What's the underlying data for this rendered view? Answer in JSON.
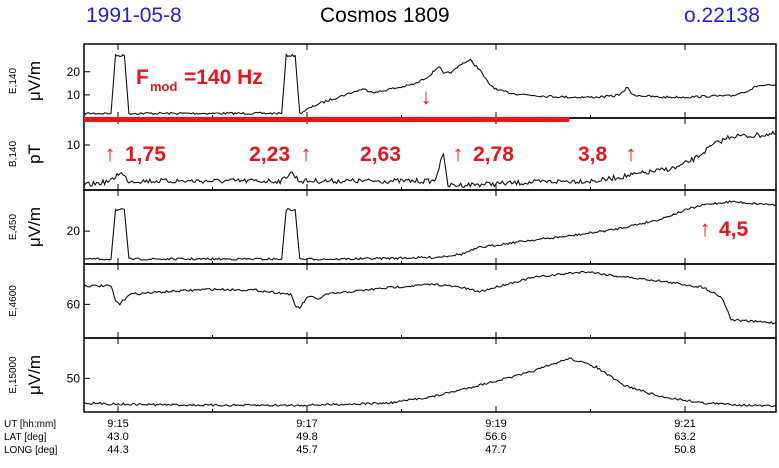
{
  "header": {
    "date": "1991-05-8",
    "satellite": "Cosmos 1809",
    "orbit": "o.22138"
  },
  "colors": {
    "header_blue": "#1f1fe0",
    "annotation_red": "#e8151b",
    "trace": "#111111",
    "frame": "#000000"
  },
  "chart_data": {
    "type": "line",
    "x_unit": "UT [hh:mm]",
    "xlim": [
      "09:14.6",
      "09:22.3"
    ],
    "x_ticks": [
      "9:15",
      "9:17",
      "9:19",
      "9:21"
    ],
    "panels": [
      {
        "id": "E140",
        "ylabel_name": "E,140",
        "ylabel_unit": "μV/m",
        "ylim": [
          0,
          32
        ],
        "y_ticks": [
          10,
          20
        ],
        "grid": false,
        "annotations": {
          "fmod_main": "F",
          "fmod_sub": "mod",
          "fmod_value": "=140 Hz",
          "down_arrow": "↓"
        },
        "series": [
          {
            "points": [
              [
                "09:14.60",
                2
              ],
              [
                "09:14.90",
                2
              ],
              [
                "09:14.95",
                27
              ],
              [
                "09:15.05",
                27
              ],
              [
                "09:15.10",
                2
              ],
              [
                "09:16.80",
                2
              ],
              [
                "09:16.85",
                27
              ],
              [
                "09:16.95",
                27
              ],
              [
                "09:17.00",
                2
              ],
              [
                "09:17.20",
                6
              ],
              [
                "09:17.50",
                10
              ],
              [
                "09:17.70",
                12.5
              ],
              [
                "09:17.85",
                11
              ],
              [
                "09:18.00",
                12.5
              ],
              [
                "09:18.15",
                13.5
              ],
              [
                "09:18.30",
                15
              ],
              [
                "09:18.45",
                18.5
              ],
              [
                "09:18.55",
                22.5
              ],
              [
                "09:18.60",
                19
              ],
              [
                "09:18.70",
                20
              ],
              [
                "09:18.80",
                23.5
              ],
              [
                "09:18.90",
                25
              ],
              [
                "09:19.00",
                21
              ],
              [
                "09:19.10",
                15
              ],
              [
                "09:19.20",
                12
              ],
              [
                "09:19.40",
                10.5
              ],
              [
                "09:19.70",
                9.5
              ],
              [
                "09:20.00",
                9
              ],
              [
                "09:20.30",
                9
              ],
              [
                "09:20.50",
                9.5
              ],
              [
                "09:20.60",
                11
              ],
              [
                "09:20.65",
                13.5
              ],
              [
                "09:20.70",
                10
              ],
              [
                "09:21.00",
                9
              ],
              [
                "09:21.30",
                9
              ],
              [
                "09:21.60",
                9.5
              ],
              [
                "09:21.80",
                9.5
              ],
              [
                "09:22.00",
                12
              ],
              [
                "09:22.10",
                14
              ],
              [
                "09:22.30",
                14
              ]
            ]
          }
        ]
      },
      {
        "id": "B140",
        "ylabel_name": "B,140",
        "ylabel_unit": "pT",
        "ylim": [
          0,
          16
        ],
        "y_ticks": [
          10
        ],
        "grid": false,
        "annotations": {
          "frequency_marks": [
            {
              "time": "09:15.05",
              "label": "1,75"
            },
            {
              "time": "09:17.00",
              "label": "2,23"
            },
            {
              "time": "09:18.55",
              "label": "2,63"
            },
            {
              "time": "09:19.00",
              "label": "2,78"
            },
            {
              "time": "09:20.50",
              "label": "3,8"
            }
          ],
          "up_arrow": "↑"
        },
        "series": [
          {
            "points": [
              [
                "09:14.60",
                1
              ],
              [
                "09:14.90",
                2
              ],
              [
                "09:15.00",
                4
              ],
              [
                "09:15.10",
                2
              ],
              [
                "09:16.80",
                2
              ],
              [
                "09:16.90",
                4
              ],
              [
                "09:17.00",
                2
              ],
              [
                "09:18.50",
                2
              ],
              [
                "09:18.60",
                8
              ],
              [
                "09:18.65",
                1
              ],
              [
                "09:20.00",
                2
              ],
              [
                "09:20.30",
                2
              ],
              [
                "09:20.60",
                3
              ],
              [
                "09:20.90",
                4
              ],
              [
                "09:21.20",
                5
              ],
              [
                "09:21.40",
                7
              ],
              [
                "09:21.60",
                10
              ],
              [
                "09:21.80",
                12
              ],
              [
                "09:22.00",
                12
              ],
              [
                "09:22.30",
                12.5
              ]
            ]
          }
        ]
      },
      {
        "id": "E450",
        "ylabel_name": "E,450",
        "ylabel_unit": "μV/m",
        "ylim": [
          0,
          45
        ],
        "y_ticks": [
          20
        ],
        "grid": false,
        "annotations": {
          "frequency_marks": [
            {
              "time": "09:22.00",
              "label": "4,5"
            }
          ],
          "up_arrow": "↑"
        },
        "series": [
          {
            "points": [
              [
                "09:14.60",
                3
              ],
              [
                "09:14.90",
                3
              ],
              [
                "09:14.95",
                33
              ],
              [
                "09:15.05",
                33
              ],
              [
                "09:15.10",
                3
              ],
              [
                "09:16.80",
                3
              ],
              [
                "09:16.85",
                33
              ],
              [
                "09:16.95",
                33
              ],
              [
                "09:17.00",
                3
              ],
              [
                "09:17.50",
                3
              ],
              [
                "09:18.00",
                3.5
              ],
              [
                "09:18.50",
                4
              ],
              [
                "09:18.80",
                6
              ],
              [
                "09:19.00",
                10
              ],
              [
                "09:19.50",
                14
              ],
              [
                "09:20.00",
                17
              ],
              [
                "09:20.50",
                21
              ],
              [
                "09:21.00",
                27
              ],
              [
                "09:21.30",
                33
              ],
              [
                "09:21.50",
                36
              ],
              [
                "09:21.80",
                38
              ],
              [
                "09:22.00",
                37
              ],
              [
                "09:22.30",
                36
              ]
            ]
          }
        ]
      },
      {
        "id": "E4600",
        "ylabel_name": "E,4600",
        "ylabel_unit": "",
        "ylim": [
          40,
          84
        ],
        "y_ticks": [
          60
        ],
        "grid": false,
        "series": [
          {
            "points": [
              [
                "09:14.60",
                71
              ],
              [
                "09:14.90",
                71
              ],
              [
                "09:14.95",
                62
              ],
              [
                "09:15.00",
                60
              ],
              [
                "09:15.10",
                66
              ],
              [
                "09:15.50",
                67.5
              ],
              [
                "09:16.00",
                69
              ],
              [
                "09:16.50",
                68.5
              ],
              [
                "09:16.90",
                66
              ],
              [
                "09:16.95",
                59
              ],
              [
                "09:17.00",
                58
              ],
              [
                "09:17.10",
                65
              ],
              [
                "09:17.20",
                63
              ],
              [
                "09:17.30",
                66
              ],
              [
                "09:18.00",
                70
              ],
              [
                "09:18.50",
                72
              ],
              [
                "09:18.80",
                70
              ],
              [
                "09:19.00",
                67.5
              ],
              [
                "09:19.30",
                72
              ],
              [
                "09:19.60",
                76
              ],
              [
                "09:20.00",
                78.5
              ],
              [
                "09:20.20",
                79.5
              ],
              [
                "09:20.50",
                77
              ],
              [
                "09:21.00",
                74
              ],
              [
                "09:21.50",
                70
              ],
              [
                "09:21.70",
                64
              ],
              [
                "09:21.80",
                51
              ],
              [
                "09:22.00",
                50
              ],
              [
                "09:22.30",
                49
              ]
            ]
          }
        ]
      },
      {
        "id": "E15000",
        "ylabel_name": "E,15000",
        "ylabel_unit": "μV/m",
        "ylim": [
          35,
          68
        ],
        "y_ticks": [
          50
        ],
        "grid": false,
        "series": [
          {
            "points": [
              [
                "09:14.60",
                39
              ],
              [
                "09:15.00",
                38.5
              ],
              [
                "09:16.00",
                38
              ],
              [
                "09:17.00",
                38
              ],
              [
                "09:17.50",
                38.5
              ],
              [
                "09:18.00",
                39
              ],
              [
                "09:18.50",
                42
              ],
              [
                "09:19.00",
                47
              ],
              [
                "09:19.50",
                52
              ],
              [
                "09:19.80",
                56
              ],
              [
                "09:20.00",
                59
              ],
              [
                "09:20.30",
                55
              ],
              [
                "09:20.60",
                47
              ],
              [
                "09:21.00",
                42
              ],
              [
                "09:21.50",
                39
              ],
              [
                "09:22.00",
                38
              ],
              [
                "09:22.30",
                37.5
              ]
            ]
          }
        ]
      }
    ],
    "red_bar": {
      "from": "09:14.60",
      "to": "09:20.00"
    },
    "footer": {
      "labels": [
        "UT [hh:mm]",
        "LAT [deg]",
        "LONG [deg]"
      ],
      "columns": [
        {
          "ut": "9:15",
          "lat": "43.0",
          "long": "44.3"
        },
        {
          "ut": "9:17",
          "lat": "49.8",
          "long": "45.7"
        },
        {
          "ut": "9:19",
          "lat": "56.6",
          "long": "47.7"
        },
        {
          "ut": "9:21",
          "lat": "63.2",
          "long": "50.8"
        }
      ]
    }
  }
}
